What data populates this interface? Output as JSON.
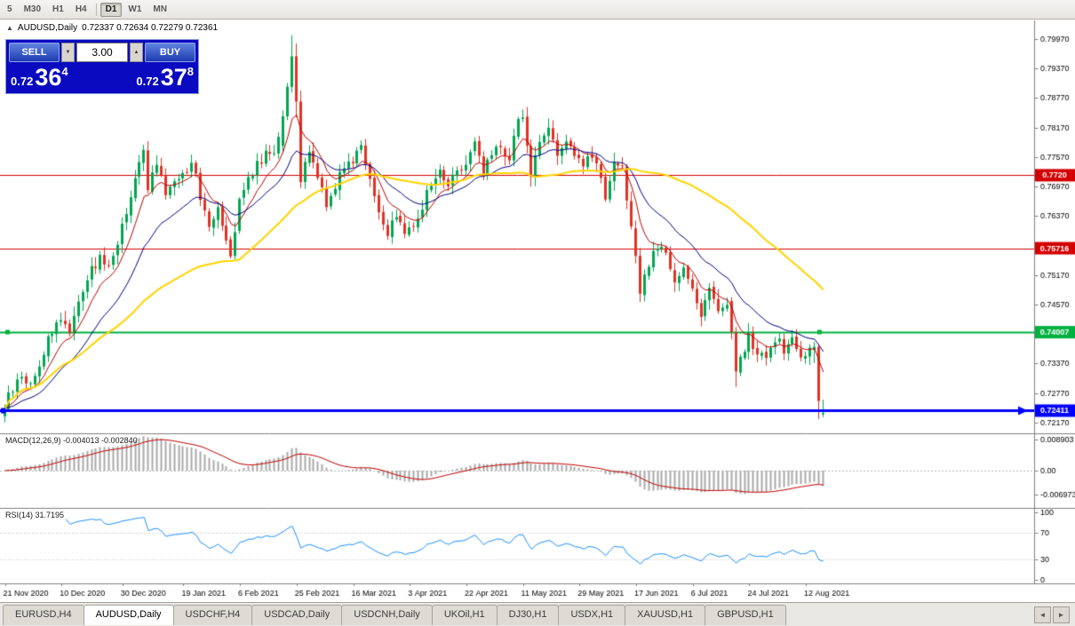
{
  "header": {
    "toggle": "▲",
    "title": "AUDUSD,Daily",
    "ohlc": "0.72337 0.72634 0.72279 0.72361"
  },
  "toolbar": {
    "timeframes": [
      "5",
      "M30",
      "H1",
      "H4",
      "D1",
      "W1",
      "MN"
    ],
    "active": "D1"
  },
  "trade_panel": {
    "sell_label": "SELL",
    "buy_label": "BUY",
    "volume": "3.00",
    "spin_down": "▼",
    "spin_up": "▲",
    "sell_price": {
      "small": "0.72",
      "big": "36",
      "sup": "4"
    },
    "buy_price": {
      "small": "0.72",
      "big": "37",
      "sup": "8"
    }
  },
  "indicator_labels": {
    "macd": "MACD(12,26,9) -0.004013 -0.002840",
    "rsi": "RSI(14) 31.7195"
  },
  "tabs": {
    "items": [
      "EURUSD,H4",
      "AUDUSD,Daily",
      "USDCHF,H4",
      "USDCAD,Daily",
      "USDCNH,Daily",
      "UKOil,H1",
      "DJ30,H1",
      "USDX,H1",
      "XAUUSD,H1",
      "GBPUSD,H1"
    ],
    "active": "AUDUSD,Daily",
    "scroll_left": "◄",
    "scroll_right": "►"
  },
  "chart_data": {
    "type": "candlestick",
    "symbol": "AUDUSD",
    "timeframe": "Daily",
    "current_ohlc": {
      "open": 0.72337,
      "high": 0.72634,
      "low": 0.72279,
      "close": 0.72361
    },
    "num_candles": 189,
    "y_axis": {
      "price_top": 0.8035,
      "price_bottom": 0.7195,
      "tick_labels": [
        "0.79970",
        "0.79370",
        "0.78770",
        "0.78170",
        "0.77570",
        "0.76970",
        "0.76370",
        "0.75770",
        "0.75170",
        "0.74570",
        "0.73970",
        "0.73370",
        "0.72770",
        "0.72170"
      ]
    },
    "x_labels": [
      {
        "i": 0,
        "label": "21 Nov 2020"
      },
      {
        "i": 13,
        "label": "10 Dec 2020"
      },
      {
        "i": 27,
        "label": "30 Dec 2020"
      },
      {
        "i": 41,
        "label": "19 Jan 2021"
      },
      {
        "i": 54,
        "label": "6 Feb 2021"
      },
      {
        "i": 67,
        "label": "25 Feb 2021"
      },
      {
        "i": 80,
        "label": "16 Mar 2021"
      },
      {
        "i": 93,
        "label": "3 Apr 2021"
      },
      {
        "i": 106,
        "label": "22 Apr 2021"
      },
      {
        "i": 119,
        "label": "11 May 2021"
      },
      {
        "i": 132,
        "label": "29 May 2021"
      },
      {
        "i": 145,
        "label": "17 Jun 2021"
      },
      {
        "i": 158,
        "label": "6 Jul 2021"
      },
      {
        "i": 171,
        "label": "24 Jul 2021"
      },
      {
        "i": 184,
        "label": "12 Aug 2021"
      }
    ],
    "close_anchors": [
      [
        0,
        0.725
      ],
      [
        2,
        0.7285
      ],
      [
        4,
        0.731
      ],
      [
        6,
        0.7295
      ],
      [
        8,
        0.733
      ],
      [
        10,
        0.739
      ],
      [
        13,
        0.743
      ],
      [
        15,
        0.7405
      ],
      [
        17,
        0.7465
      ],
      [
        19,
        0.751
      ],
      [
        22,
        0.7555
      ],
      [
        24,
        0.753
      ],
      [
        27,
        0.7615
      ],
      [
        29,
        0.767
      ],
      [
        31,
        0.7745
      ],
      [
        32,
        0.777
      ],
      [
        33,
        0.77
      ],
      [
        35,
        0.7735
      ],
      [
        37,
        0.7685
      ],
      [
        39,
        0.7715
      ],
      [
        41,
        0.772
      ],
      [
        43,
        0.775
      ],
      [
        45,
        0.768
      ],
      [
        47,
        0.762
      ],
      [
        49,
        0.766
      ],
      [
        51,
        0.7595
      ],
      [
        52,
        0.756
      ],
      [
        54,
        0.767
      ],
      [
        56,
        0.771
      ],
      [
        58,
        0.7745
      ],
      [
        60,
        0.776
      ],
      [
        62,
        0.777
      ],
      [
        64,
        0.784
      ],
      [
        66,
        0.7962
      ],
      [
        67,
        0.787
      ],
      [
        68,
        0.7706
      ],
      [
        70,
        0.777
      ],
      [
        72,
        0.7725
      ],
      [
        74,
        0.766
      ],
      [
        76,
        0.77
      ],
      [
        78,
        0.7745
      ],
      [
        80,
        0.775
      ],
      [
        82,
        0.7785
      ],
      [
        84,
        0.7715
      ],
      [
        86,
        0.764
      ],
      [
        88,
        0.759
      ],
      [
        90,
        0.7645
      ],
      [
        92,
        0.76
      ],
      [
        94,
        0.762
      ],
      [
        96,
        0.766
      ],
      [
        98,
        0.77
      ],
      [
        100,
        0.773
      ],
      [
        102,
        0.77
      ],
      [
        104,
        0.7735
      ],
      [
        106,
        0.7745
      ],
      [
        108,
        0.7785
      ],
      [
        110,
        0.772
      ],
      [
        112,
        0.7765
      ],
      [
        114,
        0.7785
      ],
      [
        116,
        0.7745
      ],
      [
        118,
        0.784
      ],
      [
        119,
        0.783
      ],
      [
        121,
        0.7725
      ],
      [
        123,
        0.7785
      ],
      [
        125,
        0.7815
      ],
      [
        127,
        0.777
      ],
      [
        129,
        0.779
      ],
      [
        131,
        0.775
      ],
      [
        133,
        0.7745
      ],
      [
        135,
        0.7765
      ],
      [
        137,
        0.772
      ],
      [
        138,
        0.766
      ],
      [
        140,
        0.774
      ],
      [
        142,
        0.773
      ],
      [
        144,
        0.761
      ],
      [
        145,
        0.7556
      ],
      [
        146,
        0.7479
      ],
      [
        148,
        0.754
      ],
      [
        150,
        0.758
      ],
      [
        152,
        0.7555
      ],
      [
        154,
        0.75
      ],
      [
        156,
        0.7535
      ],
      [
        158,
        0.749
      ],
      [
        160,
        0.744
      ],
      [
        162,
        0.749
      ],
      [
        164,
        0.7445
      ],
      [
        166,
        0.7465
      ],
      [
        167,
        0.7401
      ],
      [
        168,
        0.7321
      ],
      [
        170,
        0.7365
      ],
      [
        171,
        0.739
      ],
      [
        173,
        0.736
      ],
      [
        175,
        0.7345
      ],
      [
        177,
        0.739
      ],
      [
        179,
        0.7365
      ],
      [
        181,
        0.739
      ],
      [
        183,
        0.7345
      ],
      [
        185,
        0.7365
      ],
      [
        186,
        0.7371
      ],
      [
        187,
        0.7261
      ],
      [
        188,
        0.72361
      ]
    ],
    "ohlc_overrides": {
      "64": [
        0.778,
        0.7852,
        0.7765,
        0.784
      ],
      "65": [
        0.784,
        0.7908,
        0.7832,
        0.79
      ],
      "66": [
        0.79,
        0.8005,
        0.7888,
        0.7962
      ],
      "67": [
        0.7962,
        0.7988,
        0.7838,
        0.787
      ],
      "68": [
        0.787,
        0.7892,
        0.7694,
        0.7706
      ],
      "145": [
        0.7612,
        0.7628,
        0.7541,
        0.7556
      ],
      "146": [
        0.7556,
        0.7572,
        0.7462,
        0.7479
      ],
      "167": [
        0.7464,
        0.7472,
        0.7386,
        0.7401
      ],
      "168": [
        0.7401,
        0.7411,
        0.7289,
        0.7321
      ],
      "186": [
        0.7365,
        0.7381,
        0.7338,
        0.7371
      ],
      "187": [
        0.7371,
        0.7377,
        0.7224,
        0.7261
      ],
      "188": [
        0.72337,
        0.72634,
        0.72279,
        0.72361
      ]
    },
    "noise_amp": 0.0011,
    "wick_amp": 0.0016,
    "candle_up_color": "#00a651",
    "candle_down_color": "#e03224",
    "moving_averages": [
      {
        "type": "EMA",
        "period": 8,
        "color": "#c00000",
        "width": 1
      },
      {
        "type": "EMA",
        "period": 20,
        "color": "#000080",
        "width": 1
      },
      {
        "type": "SMA",
        "period": 55,
        "color": "#ffd400",
        "width": 2
      }
    ],
    "hlines": [
      {
        "price": 0.772,
        "label": "0.7720",
        "color": "#d40000",
        "width": 1,
        "style": "plain"
      },
      {
        "price": 0.75716,
        "label": "0.75716",
        "color": "#d40000",
        "width": 1,
        "style": "plain"
      },
      {
        "price": 0.74007,
        "label": "0.74007",
        "color": "#00b140",
        "width": 2,
        "style": "endmarks"
      },
      {
        "price": 0.72411,
        "label": "0.72411",
        "color": "#0000ff",
        "width": 3,
        "style": "arrow"
      }
    ],
    "macd": {
      "params": [
        12,
        26,
        9
      ],
      "value_main": -0.004013,
      "value_signal": -0.00284,
      "axis_labels": [
        "0.008903",
        "0.00",
        "-0.006973"
      ],
      "hist_color": "#a9a9a9",
      "signal_color": "#c00000"
    },
    "rsi": {
      "period": 14,
      "value": 31.7195,
      "levels": [
        100,
        70,
        30,
        0
      ],
      "line_color": "#1e90ff"
    }
  }
}
